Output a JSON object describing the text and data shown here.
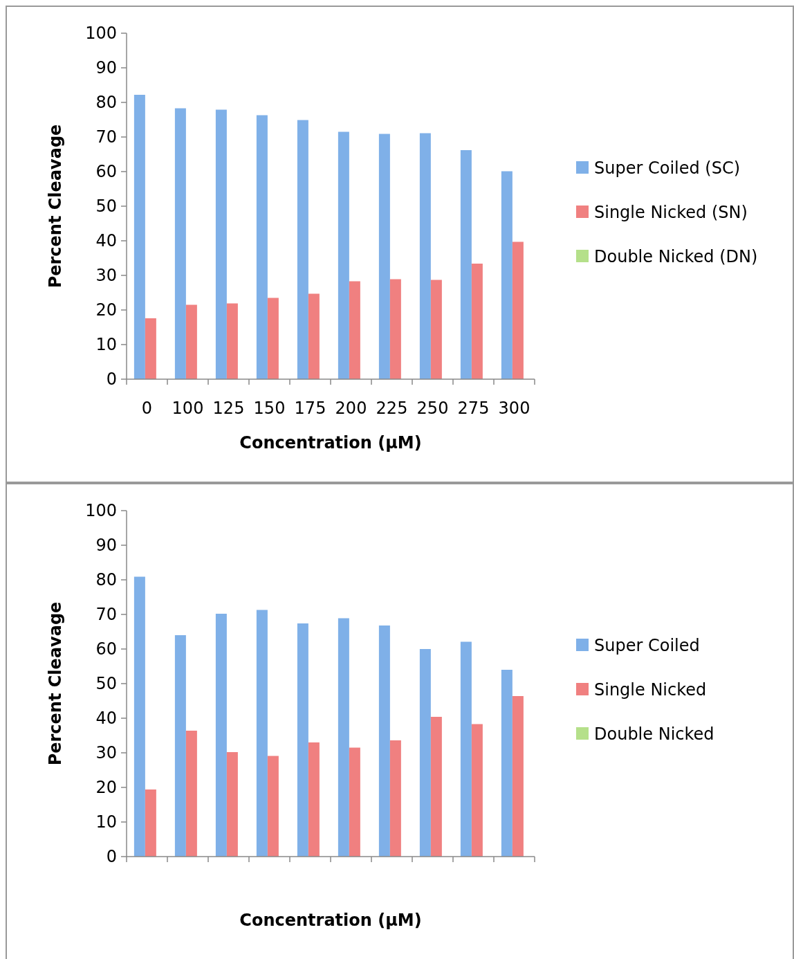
{
  "chart_data": [
    {
      "type": "bar",
      "xlabel": "Concentration (µM)",
      "ylabel": "Percent Cleavage",
      "categories": [
        "0",
        "100",
        "125",
        "150",
        "175",
        "200",
        "225",
        "250",
        "275",
        "300"
      ],
      "series": [
        {
          "name": "Super Coiled (SC)",
          "color": "#7fb0e8",
          "values": [
            82.2,
            78.3,
            77.9,
            76.3,
            74.9,
            71.5,
            70.9,
            71.1,
            66.2,
            60.1
          ]
        },
        {
          "name": "Single Nicked (SN)",
          "color": "#f08080",
          "values": [
            17.6,
            21.5,
            21.9,
            23.5,
            24.7,
            28.3,
            28.9,
            28.7,
            33.4,
            39.7
          ]
        },
        {
          "name": "Double Nicked (DN)",
          "color": "#b5e08a",
          "values": [
            0,
            0,
            0,
            0,
            0,
            0,
            0,
            0,
            0,
            0
          ]
        }
      ],
      "ylim": [
        0,
        100
      ],
      "yticks": [
        0,
        10,
        20,
        30,
        40,
        50,
        60,
        70,
        80,
        90,
        100
      ],
      "grid": false,
      "legend": "right"
    },
    {
      "type": "bar",
      "xlabel": "Concentration (µM)",
      "ylabel": "Percent Cleavage",
      "categories": [
        null,
        null,
        null,
        null,
        null,
        null,
        null,
        null,
        null,
        null
      ],
      "series": [
        {
          "name": "Super Coiled",
          "color": "#7fb0e8",
          "values": [
            80.9,
            64.0,
            70.2,
            71.3,
            67.4,
            68.9,
            66.8,
            60.0,
            62.1,
            54.0
          ]
        },
        {
          "name": "Single Nicked",
          "color": "#f08080",
          "values": [
            19.4,
            36.4,
            30.2,
            29.1,
            33.0,
            31.5,
            33.6,
            40.4,
            38.3,
            46.4
          ]
        },
        {
          "name": "Double Nicked",
          "color": "#b5e08a",
          "values": [
            0,
            0,
            0,
            0,
            0,
            0,
            0,
            0,
            0,
            0
          ]
        }
      ],
      "ylim": [
        0,
        100
      ],
      "yticks": [
        0,
        10,
        20,
        30,
        40,
        50,
        60,
        70,
        80,
        90,
        100
      ],
      "grid": false,
      "legend": "right"
    }
  ]
}
